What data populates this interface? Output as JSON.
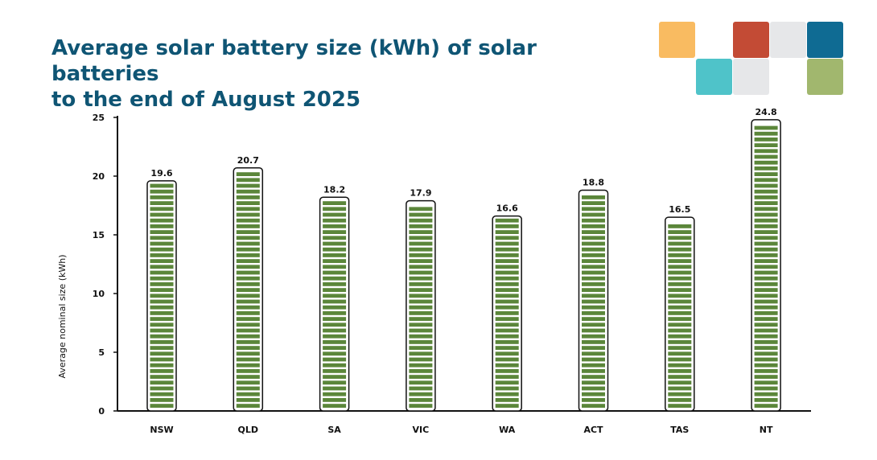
{
  "title_lines": [
    "Average solar battery size (kWh) of solar batteries",
    "to the end of August 2025"
  ],
  "decor_colors": [
    "#f9bb61",
    "#c34b35",
    "#e6e7e9",
    "#0f6b93",
    "#4fc3c9",
    "#e6e7e9",
    "#a1b76e"
  ],
  "bar_fill": "#5b863a",
  "chart_data": {
    "type": "bar",
    "title": "Average solar battery size (kWh) of solar batteries to the end of August 2025",
    "categories": [
      "NSW",
      "QLD",
      "SA",
      "VIC",
      "WA",
      "ACT",
      "TAS",
      "NT"
    ],
    "values": [
      19.6,
      20.7,
      18.2,
      17.9,
      16.6,
      18.8,
      16.5,
      24.8
    ],
    "value_labels": [
      "19.6",
      "20.7",
      "18.2",
      "17.9",
      "16.6",
      "18.8",
      "16.5",
      "24.8"
    ],
    "xlabel": "",
    "ylabel": "Average nominal size (kWh)",
    "ylim": [
      0,
      25
    ],
    "yticks": [
      "0",
      "5",
      "10",
      "15",
      "20",
      "25"
    ],
    "grid": false,
    "legend": "none"
  }
}
